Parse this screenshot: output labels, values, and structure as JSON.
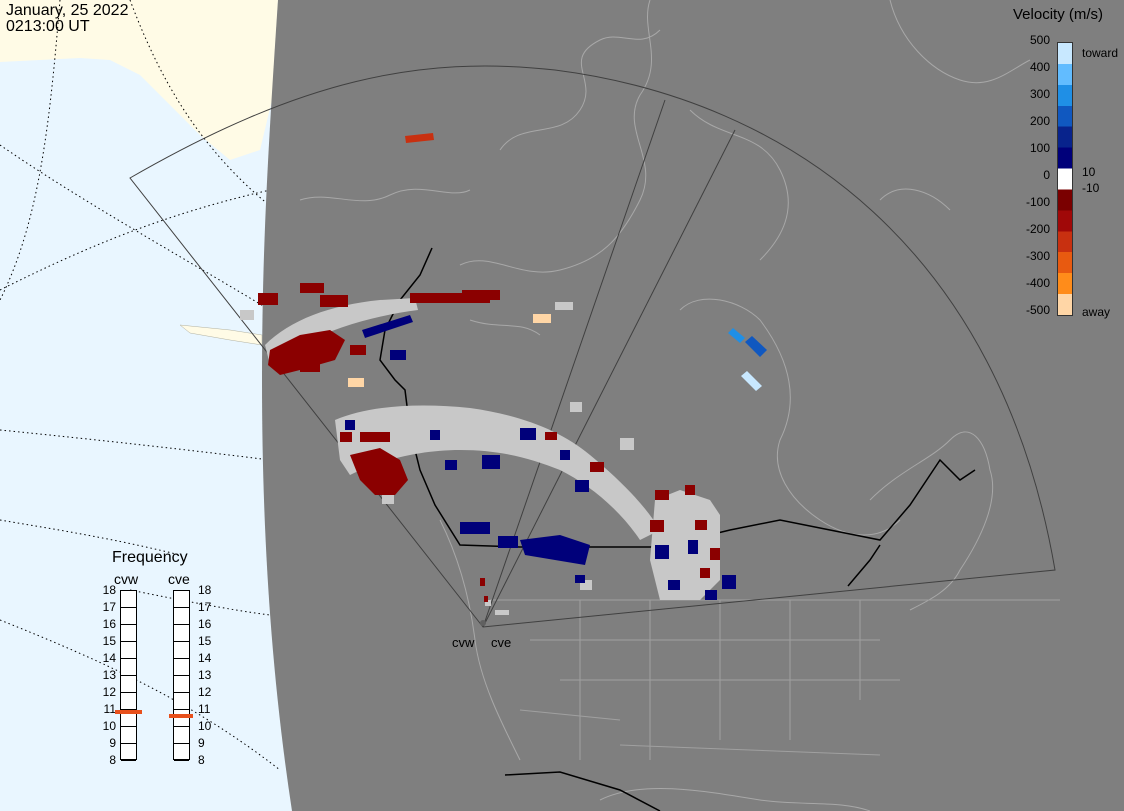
{
  "header": {
    "date": "January, 25 2022",
    "time": "0213:00 UT"
  },
  "colorbar": {
    "title": "Velocity (m/s)",
    "ticks": [
      "500",
      "400",
      "300",
      "200",
      "100",
      "10",
      "0",
      "-10",
      "-100",
      "-200",
      "-300",
      "-400",
      "-500"
    ],
    "toward_label": "toward",
    "away_label": "away",
    "colors": [
      "#c8e8ff",
      "#62bcff",
      "#1f8fe6",
      "#1058c0",
      "#08238c",
      "#00007a",
      "#ffffff",
      "#7a0000",
      "#a00808",
      "#c83010",
      "#e85a10",
      "#ff8c1a",
      "#ffd6a6"
    ]
  },
  "map": {
    "ocean_color": "#e9f6ff",
    "land_outside_color": "#fffbe6",
    "disk_color": "#7f7f7f",
    "ground_scatter_color": "#c8c8c8",
    "radars": [
      "cvw",
      "cve"
    ]
  },
  "frequency": {
    "title": "Frequency",
    "radars": [
      "cvw",
      "cve"
    ],
    "scale": [
      18,
      17,
      16,
      15,
      14,
      13,
      12,
      11,
      10,
      9,
      8
    ],
    "cvw_mhz": 10.8,
    "cve_mhz": 10.6,
    "marker_color": "#e8501c"
  }
}
